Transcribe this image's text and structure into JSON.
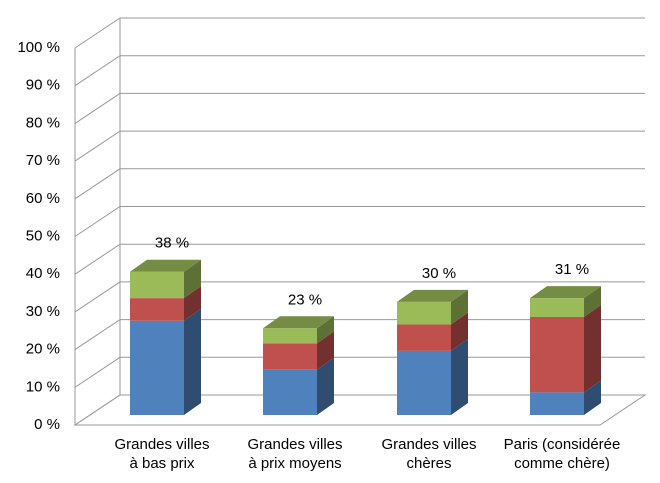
{
  "chart_data": {
    "type": "bar3d_stacked",
    "categories": [
      "Grandes villes\nà bas prix",
      "Grandes villes\nà prix moyens",
      "Grandes villes\nchères",
      "Paris (considérée\ncomme chère)"
    ],
    "series": [
      {
        "color": "#4f81bd",
        "values": [
          25,
          12,
          17,
          6
        ]
      },
      {
        "color": "#c0504d",
        "values": [
          6,
          7,
          7,
          20
        ]
      },
      {
        "color": "#9bbb59",
        "values": [
          7,
          4,
          6,
          5
        ]
      }
    ],
    "totals": [
      38,
      23,
      30,
      31
    ],
    "value_labels": [
      "38 %",
      "23 %",
      "30 %",
      "31 %"
    ],
    "ylim": [
      0,
      100
    ],
    "yticks": [
      {
        "value": 0,
        "label": "0 %"
      },
      {
        "value": 10,
        "label": "10 %"
      },
      {
        "value": 20,
        "label": "20 %"
      },
      {
        "value": 30,
        "label": "30 %"
      },
      {
        "value": 40,
        "label": "40 %"
      },
      {
        "value": 50,
        "label": "50 %"
      },
      {
        "value": 60,
        "label": "60 %"
      },
      {
        "value": 70,
        "label": "70 %"
      },
      {
        "value": 80,
        "label": "80 %"
      },
      {
        "value": 90,
        "label": "90 %"
      },
      {
        "value": 100,
        "label": "100 %"
      }
    ],
    "grid": true
  }
}
